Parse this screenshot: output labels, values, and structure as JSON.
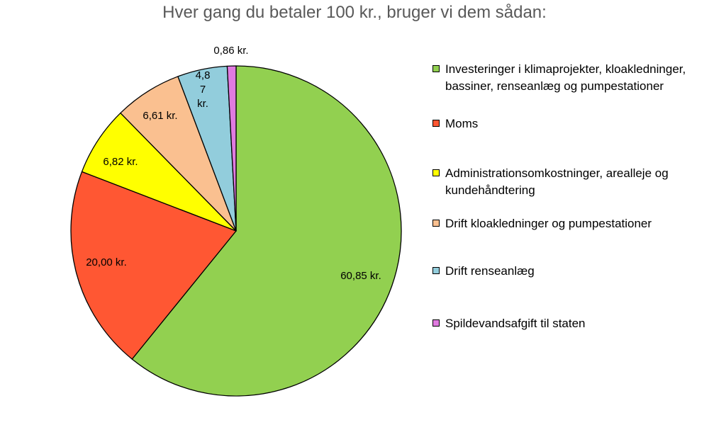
{
  "chart_data": {
    "type": "pie",
    "title": "Hver gang du betaler 100 kr., bruger vi dem sådan:",
    "legend_position": "right",
    "slices": [
      {
        "name": "Investeringer i klimaprojekter, kloakledninger, bassiner, renseanlæg og pumpestationer",
        "value": 60.85,
        "label": "60,85 kr.",
        "color": "#92d050"
      },
      {
        "name": "Moms",
        "value": 20.0,
        "label": "20,00 kr.",
        "color": "#ff5733"
      },
      {
        "name": "Administrationsomkostninger, arealleje og kundehåndtering",
        "value": 6.82,
        "label": "6,82 kr.",
        "color": "#ffff00"
      },
      {
        "name": "Drift kloakledninger og pumpestationer",
        "value": 6.61,
        "label": "6,61 kr.",
        "color": "#fac090"
      },
      {
        "name": "Drift renseanlæg",
        "value": 4.87,
        "label": "4,8\n7\nkr.",
        "color": "#92cddc"
      },
      {
        "name": "Spildevandsafgift til staten",
        "value": 0.86,
        "label": "0,86 kr.",
        "color": "#e07be0"
      }
    ]
  }
}
